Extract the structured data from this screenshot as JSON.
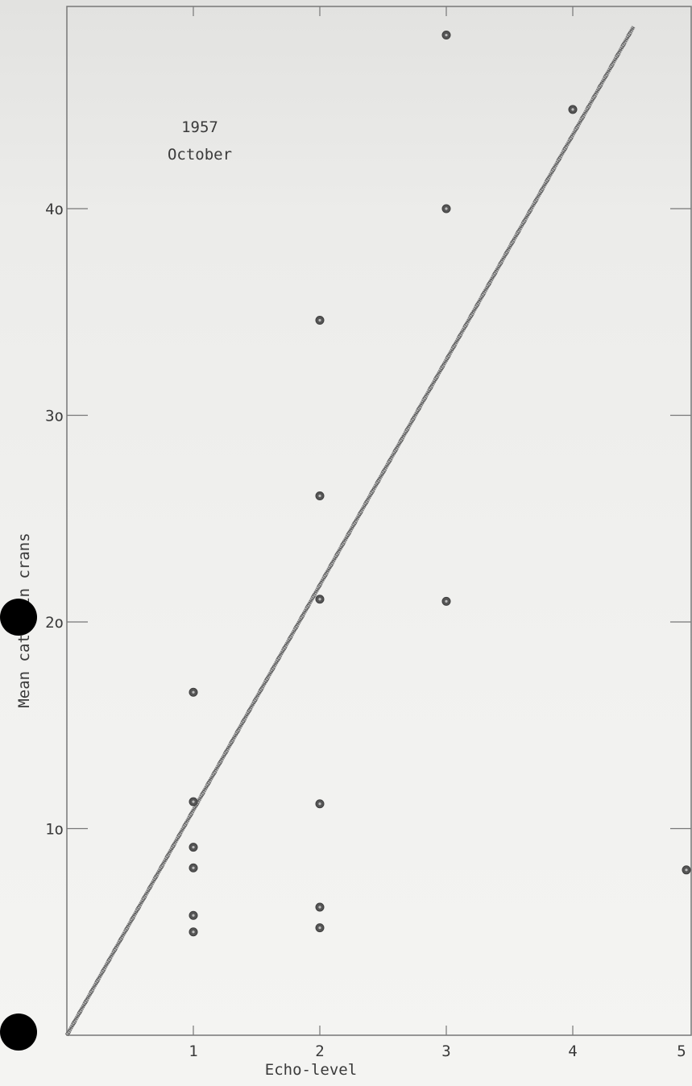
{
  "chart_data": {
    "type": "scatter",
    "title": "",
    "annotation": [
      "1957",
      "October"
    ],
    "xlabel": "Echo-level",
    "ylabel": "Mean catch in crans",
    "xlim": [
      0,
      5
    ],
    "ylim": [
      0,
      50
    ],
    "x_ticks": [
      "1",
      "2",
      "3",
      "4",
      "5"
    ],
    "y_ticks": [
      "1o",
      "2o",
      "3o",
      "4o"
    ],
    "grid": false,
    "points": [
      {
        "x": 1,
        "y": 16.6
      },
      {
        "x": 1,
        "y": 11.3
      },
      {
        "x": 1,
        "y": 9.1
      },
      {
        "x": 1,
        "y": 8.1
      },
      {
        "x": 1,
        "y": 5.8
      },
      {
        "x": 1,
        "y": 5.0
      },
      {
        "x": 2,
        "y": 34.6
      },
      {
        "x": 2,
        "y": 26.1
      },
      {
        "x": 2,
        "y": 21.1
      },
      {
        "x": 2,
        "y": 11.2
      },
      {
        "x": 2,
        "y": 6.2
      },
      {
        "x": 2,
        "y": 5.2
      },
      {
        "x": 3,
        "y": 48.4
      },
      {
        "x": 3,
        "y": 40.0
      },
      {
        "x": 3,
        "y": 21.0
      },
      {
        "x": 4,
        "y": 44.8
      },
      {
        "x": 5,
        "y": 8.0
      }
    ],
    "fit_line": {
      "x": [
        0,
        4.48
      ],
      "y": [
        0,
        48.8
      ]
    },
    "point_color": "#555555",
    "line_color": "#6a6a6a",
    "axis_color": "#777777"
  }
}
